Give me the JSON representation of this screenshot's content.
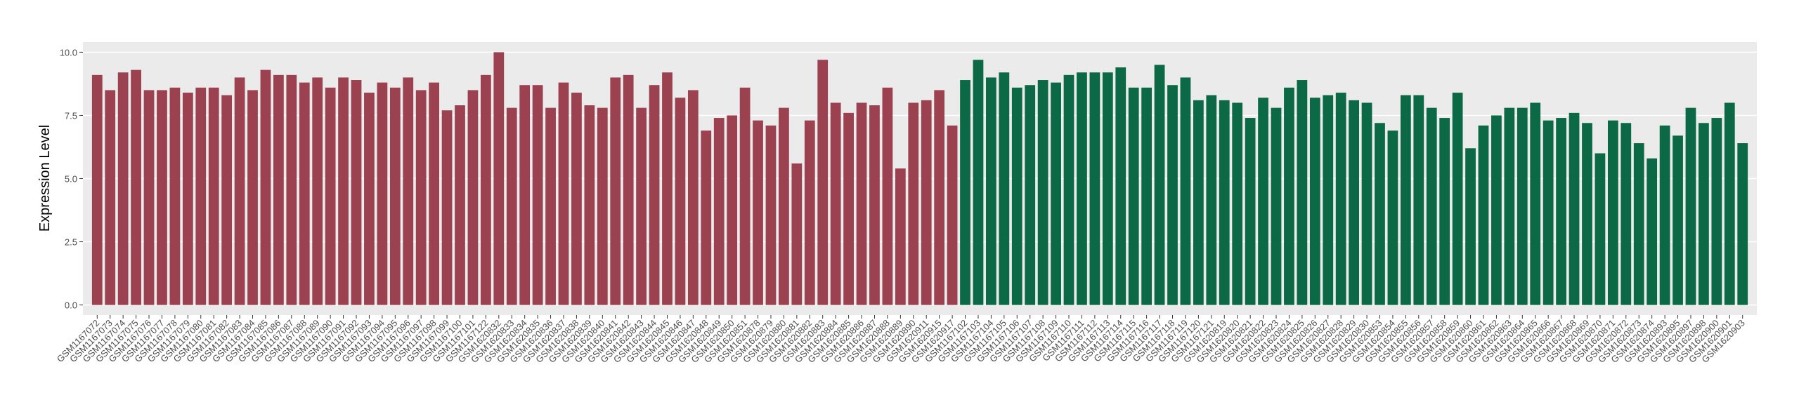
{
  "chart_data": {
    "type": "bar",
    "y_label": "Expression Level",
    "ylim": [
      -0.4,
      10.4
    ],
    "yticks": [
      {
        "value": 0,
        "label": "0.0"
      },
      {
        "value": 2.5,
        "label": "2.5"
      },
      {
        "value": 5,
        "label": "5.0"
      },
      {
        "value": 7.5,
        "label": "7.5"
      },
      {
        "value": 10,
        "label": "10.0"
      }
    ],
    "grid": true,
    "series": [
      {
        "color": "#9b4150",
        "categories": [
          "GSM1167072",
          "GSM1167073",
          "GSM1167074",
          "GSM1167075",
          "GSM1167076",
          "GSM1167077",
          "GSM1167078",
          "GSM1167079",
          "GSM1167080",
          "GSM1167081",
          "GSM1167082",
          "GSM1167083",
          "GSM1167084",
          "GSM1167085",
          "GSM1167086",
          "GSM1167087",
          "GSM1167088",
          "GSM1167089",
          "GSM1167090",
          "GSM1167091",
          "GSM1167092",
          "GSM1167093",
          "GSM1167094",
          "GSM1167095",
          "GSM1167096",
          "GSM1167097",
          "GSM1167098",
          "GSM1167099",
          "GSM1167100",
          "GSM1167101",
          "GSM1167122",
          "GSM1620832",
          "GSM1620833",
          "GSM1620834",
          "GSM1620835",
          "GSM1620836",
          "GSM1620837",
          "GSM1620838",
          "GSM1620839",
          "GSM1620840",
          "GSM1620841",
          "GSM1620842",
          "GSM1620843",
          "GSM1620844",
          "GSM1620845",
          "GSM1620846",
          "GSM1620847",
          "GSM1620848",
          "GSM1620849",
          "GSM1620850",
          "GSM1620851",
          "GSM1620878",
          "GSM1620879",
          "GSM1620880",
          "GSM1620881",
          "GSM1620882",
          "GSM1620883",
          "GSM1620884",
          "GSM1620885",
          "GSM1620886",
          "GSM1620887",
          "GSM1620888",
          "GSM1620889",
          "GSM1620890",
          "GSM1620911",
          "GSM1620915",
          "GSM1620917"
        ],
        "values": [
          9.1,
          8.5,
          9.2,
          9.3,
          8.5,
          8.5,
          8.6,
          8.4,
          8.6,
          8.6,
          8.3,
          9.0,
          8.5,
          9.3,
          9.1,
          9.1,
          8.8,
          9.0,
          8.6,
          9.0,
          8.9,
          8.4,
          8.8,
          8.6,
          9.0,
          8.5,
          8.8,
          7.7,
          7.9,
          8.5,
          9.1,
          10.0,
          7.8,
          8.7,
          8.7,
          7.8,
          8.8,
          8.4,
          7.9,
          7.8,
          9.0,
          9.1,
          7.8,
          8.7,
          9.2,
          8.2,
          8.5,
          6.9,
          7.4,
          7.5,
          8.6,
          7.3,
          7.1,
          7.8,
          5.6,
          7.3,
          9.7,
          8.0,
          7.6,
          8.0,
          7.9,
          8.6,
          5.4,
          8.0,
          8.1,
          8.5,
          7.1
        ]
      },
      {
        "color": "#0b6a45",
        "categories": [
          "GSM1167102",
          "GSM1167103",
          "GSM1167104",
          "GSM1167105",
          "GSM1167106",
          "GSM1167107",
          "GSM1167108",
          "GSM1167109",
          "GSM1167110",
          "GSM1167111",
          "GSM1167112",
          "GSM1167113",
          "GSM1167114",
          "GSM1167115",
          "GSM1167116",
          "GSM1167117",
          "GSM1167118",
          "GSM1167119",
          "GSM1167120",
          "GSM1167121",
          "GSM1620819",
          "GSM1620820",
          "GSM1620821",
          "GSM1620822",
          "GSM1620823",
          "GSM1620824",
          "GSM1620825",
          "GSM1620826",
          "GSM1620827",
          "GSM1620828",
          "GSM1620829",
          "GSM1620830",
          "GSM1620853",
          "GSM1620854",
          "GSM1620855",
          "GSM1620856",
          "GSM1620857",
          "GSM1620858",
          "GSM1620859",
          "GSM1620860",
          "GSM1620861",
          "GSM1620862",
          "GSM1620863",
          "GSM1620864",
          "GSM1620865",
          "GSM1620866",
          "GSM1620867",
          "GSM1620868",
          "GSM1620869",
          "GSM1620870",
          "GSM1620871",
          "GSM1620872",
          "GSM1620873",
          "GSM1620874",
          "GSM1620893",
          "GSM1620895",
          "GSM1620897",
          "GSM1620898",
          "GSM1620900",
          "GSM1620901",
          "GSM1620903"
        ],
        "values": [
          8.9,
          9.7,
          9.0,
          9.2,
          8.6,
          8.7,
          8.9,
          8.8,
          9.1,
          9.2,
          9.2,
          9.2,
          9.4,
          8.6,
          8.6,
          9.5,
          8.7,
          9.0,
          8.1,
          8.3,
          8.1,
          8.0,
          7.4,
          8.2,
          7.8,
          8.6,
          8.9,
          8.2,
          8.3,
          8.4,
          8.1,
          8.0,
          7.2,
          6.9,
          8.3,
          8.3,
          7.8,
          7.4,
          8.4,
          6.2,
          7.1,
          7.5,
          7.8,
          7.8,
          8.0,
          7.3,
          7.4,
          7.6,
          7.2,
          6.0,
          7.3,
          7.2,
          6.4,
          5.8,
          7.1,
          6.7,
          7.8,
          7.2,
          7.4,
          8.0,
          6.4
        ]
      }
    ]
  }
}
